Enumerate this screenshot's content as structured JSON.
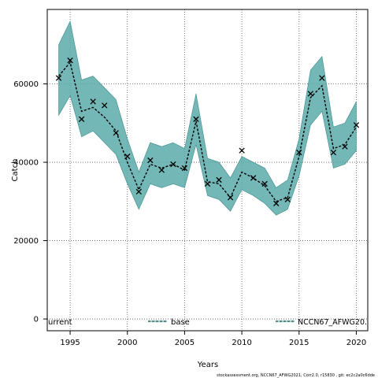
{
  "chart_data": {
    "type": "line",
    "xlabel": "Years",
    "ylabel": "Catch",
    "xlim": [
      1993.0,
      2021.0
    ],
    "ylim": [
      -3000,
      79000
    ],
    "xticks": [
      1995,
      2000,
      2005,
      2010,
      2015,
      2020
    ],
    "yticks": [
      0,
      20000,
      40000,
      60000
    ],
    "grid": true,
    "legend_position": "bottom",
    "x": [
      1994,
      1995,
      1996,
      1997,
      1998,
      1999,
      2000,
      2001,
      2002,
      2003,
      2004,
      2005,
      2006,
      2007,
      2008,
      2009,
      2010,
      2011,
      2012,
      2013,
      2014,
      2015,
      2016,
      2017,
      2018,
      2019,
      2020
    ],
    "series": [
      {
        "name": "base",
        "color": "#000000",
        "style": "dashed-line",
        "values": [
          62000,
          65500,
          53000,
          54000,
          51500,
          48000,
          40000,
          33000,
          39500,
          38500,
          39500,
          38000,
          50500,
          35000,
          34500,
          31000,
          37500,
          36000,
          34000,
          30000,
          31000,
          41500,
          56500,
          59500,
          43500,
          44500,
          49000
        ]
      },
      {
        "name": "NCCN67_AFWG20",
        "color": "#5aaaaa",
        "style": "band",
        "lower": [
          52000,
          57000,
          46500,
          48000,
          45000,
          42000,
          34500,
          28000,
          34500,
          33500,
          34500,
          33500,
          44500,
          31500,
          30500,
          27500,
          33000,
          31500,
          29500,
          26500,
          28000,
          36500,
          49500,
          53000,
          38500,
          39500,
          43000
        ],
        "upper": [
          70000,
          76000,
          61000,
          62000,
          59000,
          56000,
          46000,
          37500,
          45000,
          44000,
          45000,
          43500,
          57500,
          41000,
          40000,
          36000,
          41500,
          40000,
          38500,
          33500,
          35500,
          46000,
          63500,
          67000,
          49000,
          50000,
          55500
        ]
      },
      {
        "name": "current",
        "color": "#000000",
        "style": "x-markers",
        "values": [
          61500,
          66000,
          51000,
          55500,
          54500,
          47500,
          41500,
          32500,
          40500,
          38000,
          39500,
          38500,
          51000,
          34500,
          35500,
          31000,
          43000,
          36000,
          34500,
          29500,
          30500,
          42500,
          57500,
          61500,
          42500,
          44000,
          49500
        ]
      }
    ],
    "legend": [
      {
        "label": "urrent"
      },
      {
        "label": "base"
      },
      {
        "label": "NCCN67_AFWG20."
      }
    ]
  },
  "footer": {
    "text": "stockassessment.org, NCCN67_AFWG2021, Corr2.0, r15830 , git: ec2c2a0c6dde"
  },
  "colors": {
    "band_fill": "#5aaaaa",
    "band_stroke": "#3a8a8a",
    "line": "#000000"
  }
}
